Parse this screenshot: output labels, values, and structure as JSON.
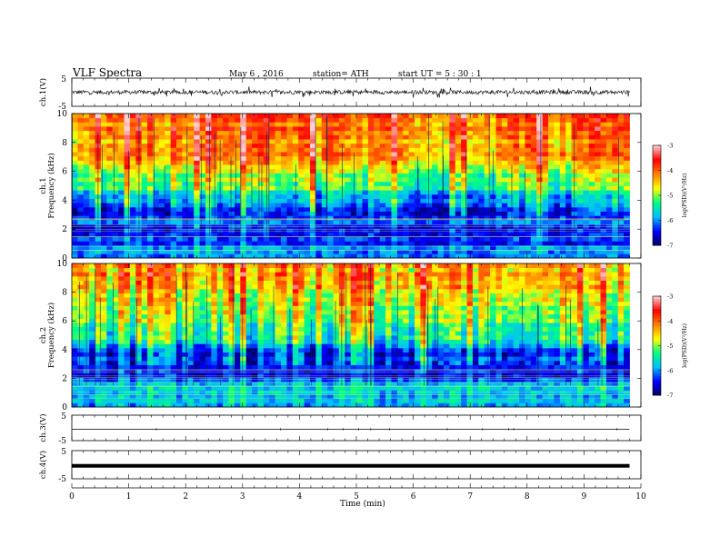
{
  "header": {
    "title": "VLF  Spectra",
    "date": "May 6  , 2016",
    "station": "station= ATH",
    "start_ut": "start  UT  =    5  : 30 : 1"
  },
  "chart_data": [
    {
      "type": "line",
      "panel": "ch1-waveform",
      "ylabel": "ch.1(V)",
      "ylim": [
        -5,
        5
      ],
      "y_tick_labels": [
        "5",
        "-5"
      ],
      "x_range_min": [
        0,
        9.8
      ],
      "description_values": "noisy waveform, amplitude approx within ±1.5 V"
    },
    {
      "type": "heatmap",
      "panel": "ch1-spectrogram",
      "ylabel": "ch.1\nFrequency (kHz)",
      "ylabel_lines": [
        "ch.1",
        "Frequency (kHz)"
      ],
      "ylim": [
        0,
        10
      ],
      "y_ticks": [
        "0",
        "2",
        "4",
        "6",
        "8",
        "10"
      ],
      "colorbar": {
        "ticks": [
          "-3",
          "-4",
          "-5",
          "-6",
          "-7"
        ],
        "label": "log(PSD)(V²/Hz)",
        "range": [
          -7,
          -3
        ]
      },
      "intensity_by_freq_khz": [
        [
          0,
          -5.8
        ],
        [
          1,
          -6.2
        ],
        [
          2,
          -6.4
        ],
        [
          3,
          -6.3
        ],
        [
          4,
          -5.9
        ],
        [
          5,
          -5.3
        ],
        [
          6,
          -4.8
        ],
        [
          7,
          -4.4
        ],
        [
          8,
          -4.2
        ],
        [
          9,
          -4.1
        ],
        [
          10,
          -4.0
        ]
      ]
    },
    {
      "type": "heatmap",
      "panel": "ch2-spectrogram",
      "ylabel_lines": [
        "ch.2",
        "Frequency (kHz)"
      ],
      "ylim": [
        0,
        10
      ],
      "y_ticks": [
        "0",
        "2",
        "4",
        "6",
        "8",
        "10"
      ],
      "colorbar": {
        "ticks": [
          "-3",
          "-4",
          "-5",
          "-6",
          "-7"
        ],
        "label": "log(PSD)(V²/Hz)",
        "range": [
          -7,
          -3
        ]
      },
      "intensity_by_freq_khz": [
        [
          0,
          -6.0
        ],
        [
          1,
          -5.8
        ],
        [
          2,
          -6.2
        ],
        [
          3,
          -6.4
        ],
        [
          4,
          -6.2
        ],
        [
          5,
          -5.4
        ],
        [
          6,
          -5.0
        ],
        [
          7,
          -4.8
        ],
        [
          8,
          -4.6
        ],
        [
          9,
          -4.4
        ],
        [
          10,
          -4.3
        ]
      ]
    },
    {
      "type": "line",
      "panel": "ch3-waveform",
      "ylabel": "ch.3(V)",
      "ylim": [
        -5,
        5
      ],
      "y_tick_labels": [
        "5",
        "-5"
      ],
      "level_v": -0.5
    },
    {
      "type": "line",
      "panel": "ch4-waveform",
      "ylabel": "ch.4(V)",
      "ylim": [
        -5,
        5
      ],
      "y_tick_labels": [
        "5",
        "-5"
      ],
      "level_v": -0.4
    }
  ],
  "x_axis": {
    "label": "Time  (min)",
    "range": [
      0,
      10
    ],
    "data_end": 9.8,
    "tick_labels": [
      "0",
      "1",
      "2",
      "3",
      "4",
      "5",
      "6",
      "7",
      "8",
      "9",
      "10"
    ]
  },
  "colors": {
    "scale": [
      "#000060",
      "#0000ff",
      "#00bfff",
      "#00ff80",
      "#ffff00",
      "#ff8000",
      "#ff0000",
      "#ffd0d0"
    ]
  }
}
